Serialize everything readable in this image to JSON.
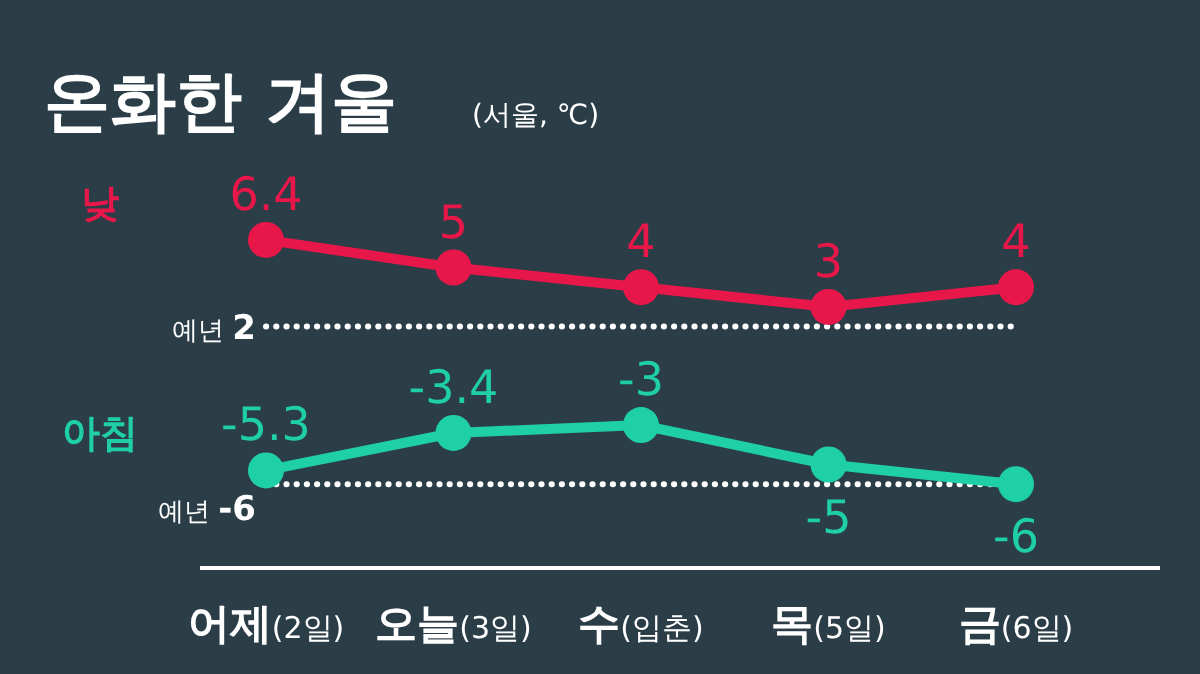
{
  "chart_data": {
    "type": "line",
    "title": "온화한 겨울",
    "subtitle": "(서울, ℃)",
    "categories": [
      "**어제**(2일)",
      "**오늘**(3일)",
      "**수**(입춘)",
      "**목**(5일)",
      "**금**(6일)"
    ],
    "series": [
      {
        "name": "낮",
        "color": "#e8174a",
        "values": [
          6.4,
          5,
          4,
          3,
          4
        ]
      },
      {
        "name": "아침",
        "color": "#1fcfa7",
        "values": [
          -5.3,
          -3.4,
          -3,
          -5,
          -6
        ]
      }
    ],
    "tick_labels": "x",
    "data_labels": true,
    "marker": "circle",
    "ref_lines": [
      {
        "axis": "y",
        "value": 2,
        "label": "예년 **2**",
        "color": "#ffffff",
        "line_style": "dotted"
      },
      {
        "axis": "y",
        "value": -6,
        "label": "예년 **-6**",
        "color": "#ffffff",
        "line_style": "dotted"
      }
    ]
  }
}
